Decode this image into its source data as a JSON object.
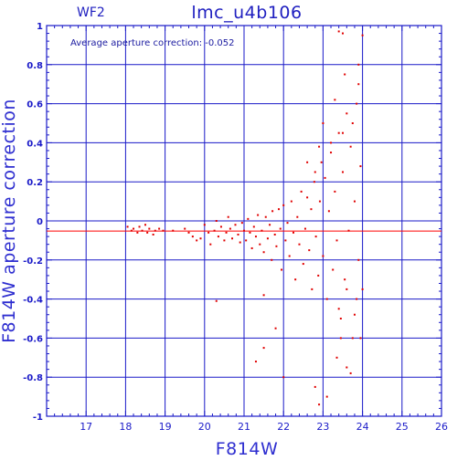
{
  "panel_label": "WF2",
  "annotation": "Average aperture correction: -0.052",
  "chart_data": {
    "type": "scatter",
    "title": "lmc_u4b106",
    "xlabel": "F814W",
    "ylabel": "F814W aperture correction",
    "xlim": [
      16,
      26
    ],
    "ylim": [
      -1,
      1
    ],
    "xticks": [
      17,
      18,
      19,
      20,
      21,
      22,
      23,
      24,
      25,
      26
    ],
    "yticks": [
      -1,
      -0.8,
      -0.6,
      -0.4,
      -0.2,
      0,
      0.2,
      0.4,
      0.6,
      0.8,
      1
    ],
    "ytick_labels": [
      "-1",
      "-0.8",
      "-0.6",
      "-0.4",
      "-0.2",
      "0",
      "0.2",
      "0.4",
      "0.6",
      "0.8",
      "1"
    ],
    "grid": true,
    "reference_line": {
      "y": -0.052,
      "color": "#ff0000"
    },
    "colors": {
      "axes": "#1a1ac8",
      "points": "#e00000"
    },
    "series": [
      {
        "values": [
          [
            18.05,
            -0.03
          ],
          [
            18.15,
            -0.05
          ],
          [
            18.2,
            -0.04
          ],
          [
            18.3,
            -0.06
          ],
          [
            18.35,
            -0.03
          ],
          [
            18.42,
            -0.05
          ],
          [
            18.5,
            -0.02
          ],
          [
            18.55,
            -0.06
          ],
          [
            18.6,
            -0.04
          ],
          [
            18.7,
            -0.07
          ],
          [
            18.75,
            -0.05
          ],
          [
            18.85,
            -0.04
          ],
          [
            18.95,
            -0.05
          ],
          [
            19.2,
            -0.05
          ],
          [
            19.5,
            -0.04
          ],
          [
            19.6,
            -0.06
          ],
          [
            19.7,
            -0.08
          ],
          [
            19.8,
            -0.1
          ],
          [
            19.9,
            -0.09
          ],
          [
            20.0,
            -0.02
          ],
          [
            20.1,
            -0.06
          ],
          [
            20.15,
            -0.12
          ],
          [
            20.25,
            -0.05
          ],
          [
            20.3,
            0.0
          ],
          [
            20.35,
            -0.08
          ],
          [
            20.42,
            -0.03
          ],
          [
            20.5,
            -0.1
          ],
          [
            20.55,
            -0.06
          ],
          [
            20.6,
            0.02
          ],
          [
            20.65,
            -0.04
          ],
          [
            20.7,
            -0.09
          ],
          [
            20.78,
            -0.02
          ],
          [
            20.85,
            -0.07
          ],
          [
            20.9,
            -0.11
          ],
          [
            20.95,
            -0.01
          ],
          [
            21.0,
            -0.05
          ],
          [
            21.05,
            -0.1
          ],
          [
            21.1,
            0.01
          ],
          [
            21.15,
            -0.06
          ],
          [
            21.2,
            -0.14
          ],
          [
            21.25,
            -0.03
          ],
          [
            21.3,
            -0.08
          ],
          [
            21.35,
            0.03
          ],
          [
            21.4,
            -0.12
          ],
          [
            21.45,
            -0.05
          ],
          [
            21.5,
            -0.16
          ],
          [
            21.55,
            0.02
          ],
          [
            21.6,
            -0.09
          ],
          [
            21.65,
            -0.02
          ],
          [
            21.7,
            -0.2
          ],
          [
            21.72,
            0.05
          ],
          [
            21.78,
            -0.07
          ],
          [
            21.82,
            -0.13
          ],
          [
            21.88,
            0.06
          ],
          [
            21.92,
            -0.04
          ],
          [
            21.95,
            -0.25
          ],
          [
            22.0,
            0.08
          ],
          [
            22.05,
            -0.1
          ],
          [
            22.1,
            -0.01
          ],
          [
            22.15,
            -0.18
          ],
          [
            22.2,
            0.1
          ],
          [
            22.25,
            -0.06
          ],
          [
            22.3,
            -0.3
          ],
          [
            22.35,
            0.02
          ],
          [
            22.4,
            -0.12
          ],
          [
            22.45,
            0.15
          ],
          [
            22.5,
            -0.22
          ],
          [
            22.55,
            -0.04
          ],
          [
            22.6,
            0.12
          ],
          [
            22.65,
            -0.15
          ],
          [
            22.7,
            0.06
          ],
          [
            22.72,
            -0.35
          ],
          [
            22.78,
            0.2
          ],
          [
            22.82,
            -0.08
          ],
          [
            22.88,
            -0.28
          ],
          [
            22.92,
            0.1
          ],
          [
            22.96,
            0.3
          ],
          [
            23.0,
            -0.18
          ],
          [
            23.05,
            0.22
          ],
          [
            23.1,
            -0.4
          ],
          [
            23.15,
            0.05
          ],
          [
            23.2,
            0.35
          ],
          [
            23.25,
            -0.25
          ],
          [
            23.3,
            0.15
          ],
          [
            23.35,
            -0.1
          ],
          [
            23.4,
            0.45
          ],
          [
            23.45,
            -0.5
          ],
          [
            23.5,
            0.25
          ],
          [
            23.55,
            -0.3
          ],
          [
            23.6,
            0.55
          ],
          [
            23.65,
            -0.05
          ],
          [
            23.7,
            0.38
          ],
          [
            23.75,
            -0.6
          ],
          [
            23.8,
            0.1
          ],
          [
            23.85,
            -0.4
          ],
          [
            23.9,
            0.7
          ],
          [
            23.95,
            0.28
          ],
          [
            23.3,
            0.62
          ],
          [
            23.4,
            0.97
          ],
          [
            23.5,
            0.96
          ],
          [
            24.0,
            0.95
          ],
          [
            23.9,
            0.8
          ],
          [
            23.6,
            -0.75
          ],
          [
            23.7,
            -0.78
          ],
          [
            23.1,
            -0.9
          ],
          [
            22.8,
            -0.85
          ],
          [
            22.9,
            -0.94
          ],
          [
            22.0,
            -0.8
          ],
          [
            21.5,
            -0.65
          ],
          [
            21.3,
            -0.72
          ],
          [
            20.3,
            -0.41
          ],
          [
            21.5,
            -0.38
          ],
          [
            21.8,
            -0.55
          ],
          [
            23.35,
            -0.7
          ],
          [
            23.45,
            -0.6
          ],
          [
            23.55,
            0.75
          ],
          [
            23.75,
            0.5
          ],
          [
            23.85,
            0.6
          ],
          [
            23.5,
            0.45
          ],
          [
            23.2,
            0.4
          ],
          [
            23.0,
            0.5
          ],
          [
            22.9,
            0.38
          ],
          [
            22.6,
            0.3
          ],
          [
            22.8,
            0.25
          ],
          [
            23.4,
            -0.45
          ],
          [
            23.6,
            -0.35
          ],
          [
            23.8,
            -0.48
          ],
          [
            23.9,
            -0.2
          ],
          [
            24.0,
            -0.35
          ],
          [
            23.95,
            -0.6
          ]
        ]
      }
    ]
  }
}
